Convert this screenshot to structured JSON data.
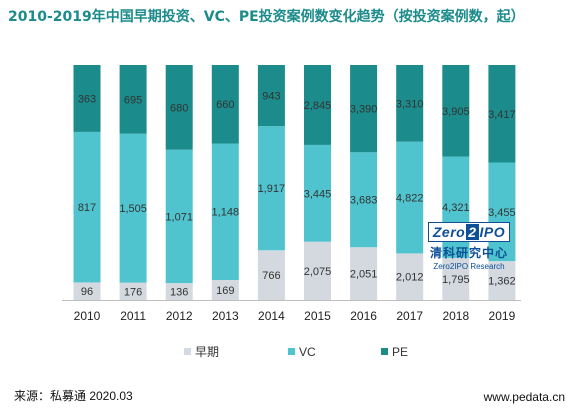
{
  "chart_data": {
    "type": "bar",
    "stacked": true,
    "title": "2010-2019年中国早期投资、VC、PE投资案例数变化趋势（按投资案例数，起）",
    "categories": [
      "2010",
      "2011",
      "2012",
      "2013",
      "2014",
      "2015",
      "2016",
      "2017",
      "2018",
      "2019"
    ],
    "series": [
      {
        "name": "早期",
        "color": "#d3d9df",
        "values": [
          96,
          176,
          136,
          169,
          766,
          2075,
          2051,
          2012,
          1795,
          1362
        ],
        "labels": [
          "96",
          "176",
          "136",
          "169",
          "766",
          "2,075",
          "2,051",
          "2,012",
          "1,795",
          "1,362"
        ]
      },
      {
        "name": "VC",
        "color": "#4fc4cf",
        "values": [
          817,
          1505,
          1071,
          1148,
          1917,
          3445,
          3683,
          4822,
          4321,
          3455
        ],
        "labels": [
          "817",
          "1,505",
          "1,071",
          "1,148",
          "1,917",
          "3,445",
          "3,683",
          "4,822",
          "4,321",
          "3,455"
        ]
      },
      {
        "name": "PE",
        "color": "#1b8b8b",
        "values": [
          363,
          695,
          680,
          660,
          943,
          2845,
          3390,
          3310,
          3905,
          3417
        ],
        "labels": [
          "363",
          "695",
          "680",
          "660",
          "943",
          "2,845",
          "3,390",
          "3,310",
          "3,905",
          "3,417"
        ]
      }
    ],
    "normalized": true,
    "ylim": [
      0,
      1
    ],
    "legend_position": "bottom",
    "grid": false
  },
  "footer": {
    "source": "来源：私募通 2020.03",
    "site": "www.pedata.cn"
  },
  "watermark": {
    "badge_left": "Zero",
    "badge_two": "2",
    "badge_right": "IPO",
    "cn": "清科研究中心",
    "en": "Zero2IPO Research"
  }
}
